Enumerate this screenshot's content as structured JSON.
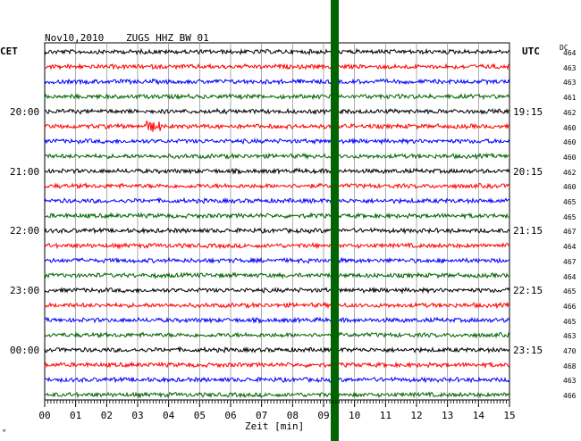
{
  "header": {
    "date": "Nov10,2010",
    "station": "ZUGS HHZ BW 01",
    "left_tz": "CET",
    "right_tz": "UTC",
    "dc_header": "DC"
  },
  "x_axis": {
    "label": "Zeit [min]",
    "ticks": [
      "00",
      "01",
      "02",
      "03",
      "04",
      "05",
      "06",
      "07",
      "08",
      "09",
      "10",
      "11",
      "12",
      "13",
      "14",
      "15"
    ]
  },
  "cet_labels": [
    "20:00",
    "21:00",
    "22:00",
    "23:00",
    "00:00"
  ],
  "utc_labels": [
    "19:15",
    "20:15",
    "21:15",
    "22:15",
    "23:15"
  ],
  "dc_values": [
    "464",
    "463",
    "463",
    "461",
    "462",
    "460",
    "460",
    "460",
    "462",
    "460",
    "465",
    "465",
    "467",
    "464",
    "467",
    "464",
    "465",
    "466",
    "465",
    "463",
    "470",
    "468",
    "463",
    "466"
  ],
  "trace_colors": [
    "#000000",
    "#ff0000",
    "#0000ff",
    "#006400"
  ],
  "event_marker_color": "#006400",
  "corner_mark": "∘"
}
